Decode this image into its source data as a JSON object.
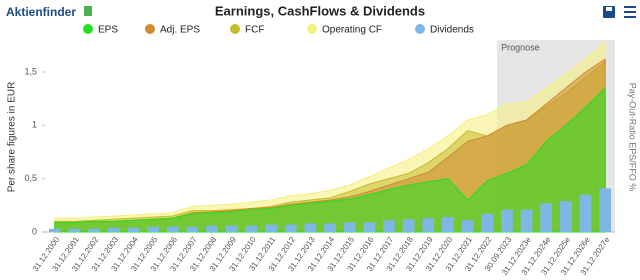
{
  "logo": "Aktienfinder",
  "chart_data": {
    "type": "area",
    "title": "Earnings, CashFlows & Dividends",
    "y_label": "Per share figures in EUR",
    "y2_label": "Pay-Out-Ratio EPS/FFO %",
    "forecast": {
      "label": "Prognose",
      "start": "30.09.2023"
    },
    "categories": [
      "31.12.2000",
      "31.12.2001",
      "31.12.2002",
      "31.12.2003",
      "31.12.2004",
      "31.12.2005",
      "31.12.2006",
      "31.12.2007",
      "31.12.2008",
      "31.12.2009",
      "31.12.2010",
      "31.12.2011",
      "31.12.2012",
      "31.12.2013",
      "31.12.2014",
      "31.12.2015",
      "31.12.2016",
      "31.12.2017",
      "31.12.2018",
      "31.12.2019",
      "31.12.2020",
      "31.12.2021",
      "31.12.2022",
      "30.09.2023",
      "31.12.2023e",
      "31.12.2024e",
      "31.12.2025e",
      "31.12.2026e",
      "31.12.2027e"
    ],
    "ylim": [
      0,
      1.8
    ],
    "yticks": [
      0,
      {
        "value": 0.5,
        "label": "0,5"
      },
      1,
      {
        "value": 1.5,
        "label": "1,5"
      }
    ],
    "grid": false,
    "series": [
      {
        "name": "Operating CF",
        "color": "#f5f07a",
        "values": [
          0.13,
          0.13,
          0.14,
          0.15,
          0.16,
          0.17,
          0.18,
          0.24,
          0.25,
          0.26,
          0.28,
          0.3,
          0.34,
          0.36,
          0.39,
          0.44,
          0.52,
          0.6,
          0.68,
          0.78,
          0.9,
          1.05,
          1.1,
          1.2,
          1.22,
          1.35,
          1.48,
          1.62,
          1.78
        ]
      },
      {
        "name": "FCF",
        "color": "#c4bc2e",
        "values": [
          0.1,
          0.1,
          0.11,
          0.12,
          0.13,
          0.14,
          0.15,
          0.2,
          0.2,
          0.21,
          0.22,
          0.24,
          0.28,
          0.3,
          0.32,
          0.38,
          0.45,
          0.5,
          0.55,
          0.65,
          0.78,
          0.95,
          0.9,
          1.0,
          1.05,
          1.18,
          1.3,
          1.45,
          1.6
        ]
      },
      {
        "name": "Adj. EPS",
        "color": "#d08a30",
        "values": [
          0.09,
          0.09,
          0.1,
          0.1,
          0.11,
          0.12,
          0.13,
          0.18,
          0.19,
          0.2,
          0.22,
          0.23,
          0.26,
          0.28,
          0.3,
          0.33,
          0.38,
          0.44,
          0.5,
          0.56,
          0.7,
          0.85,
          0.9,
          1.0,
          1.05,
          1.2,
          1.35,
          1.5,
          1.62
        ]
      },
      {
        "name": "EPS",
        "color": "#22e022",
        "values": [
          0.09,
          0.09,
          0.1,
          0.1,
          0.11,
          0.12,
          0.13,
          0.17,
          0.18,
          0.19,
          0.21,
          0.22,
          0.25,
          0.27,
          0.29,
          0.31,
          0.35,
          0.4,
          0.44,
          0.47,
          0.5,
          0.3,
          0.48,
          0.55,
          0.63,
          0.85,
          1.0,
          1.17,
          1.35
        ]
      },
      {
        "name": "Dividends",
        "type": "bar",
        "color": "#7eb6e4",
        "values": [
          0.03,
          0.03,
          0.03,
          0.04,
          0.04,
          0.05,
          0.05,
          0.05,
          0.06,
          0.06,
          0.06,
          0.07,
          0.07,
          0.08,
          0.08,
          0.09,
          0.09,
          0.11,
          0.12,
          0.13,
          0.14,
          0.11,
          0.17,
          0.21,
          0.21,
          0.27,
          0.29,
          0.35,
          0.41
        ]
      }
    ],
    "legend_order": [
      3,
      2,
      1,
      0,
      4
    ]
  }
}
